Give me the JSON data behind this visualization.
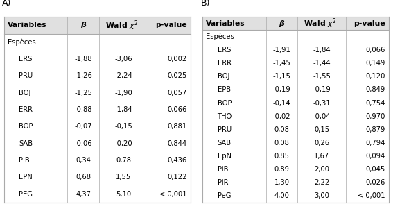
{
  "title_A": "A)",
  "title_B": "B)",
  "headers": [
    "Variables",
    "β",
    "Wald χ²",
    "p-value"
  ],
  "table_A": {
    "section": "Espèces",
    "rows": [
      [
        "ERS",
        "-1,88",
        "-3,06",
        "0,002"
      ],
      [
        "PRU",
        "-1,26",
        "-2,24",
        "0,025"
      ],
      [
        "BOJ",
        "-1,25",
        "-1,90",
        "0,057"
      ],
      [
        "ERR",
        "-0,88",
        "-1,84",
        "0,066"
      ],
      [
        "BOP",
        "-0,07",
        "-0,15",
        "0,881"
      ],
      [
        "SAB",
        "-0,06",
        "-0,20",
        "0,844"
      ],
      [
        "PIB",
        "0,34",
        "0,78",
        "0,436"
      ],
      [
        "EPN",
        "0,68",
        "1,55",
        "0,122"
      ],
      [
        "PEG",
        "4,37",
        "5,10",
        "< 0,001"
      ]
    ]
  },
  "table_B": {
    "section": "Espèces",
    "rows": [
      [
        "ERS",
        "-1,91",
        "-1,84",
        "0,066"
      ],
      [
        "ERR",
        "-1,45",
        "-1,44",
        "0,149"
      ],
      [
        "BOJ",
        "-1,15",
        "-1,55",
        "0,120"
      ],
      [
        "EPB",
        "-0,19",
        "-0,19",
        "0,849"
      ],
      [
        "BOP",
        "-0,14",
        "-0,31",
        "0,754"
      ],
      [
        "THO",
        "-0,02",
        "-0,04",
        "0,970"
      ],
      [
        "PRU",
        "0,08",
        "0,15",
        "0,879"
      ],
      [
        "SAB",
        "0,08",
        "0,26",
        "0,794"
      ],
      [
        "EpN",
        "0,85",
        "1,67",
        "0,094"
      ],
      [
        "PiB",
        "0,89",
        "2,00",
        "0,045"
      ],
      [
        "PiR",
        "1,30",
        "2,22",
        "0,026"
      ],
      [
        "PeG",
        "4,00",
        "3,00",
        "< 0,001"
      ]
    ]
  },
  "bg_color": "#ffffff",
  "header_bg": "#e0e0e0",
  "text_color": "#000000",
  "line_color": "#aaaaaa",
  "font_size": 7.2,
  "header_font_size": 7.8
}
